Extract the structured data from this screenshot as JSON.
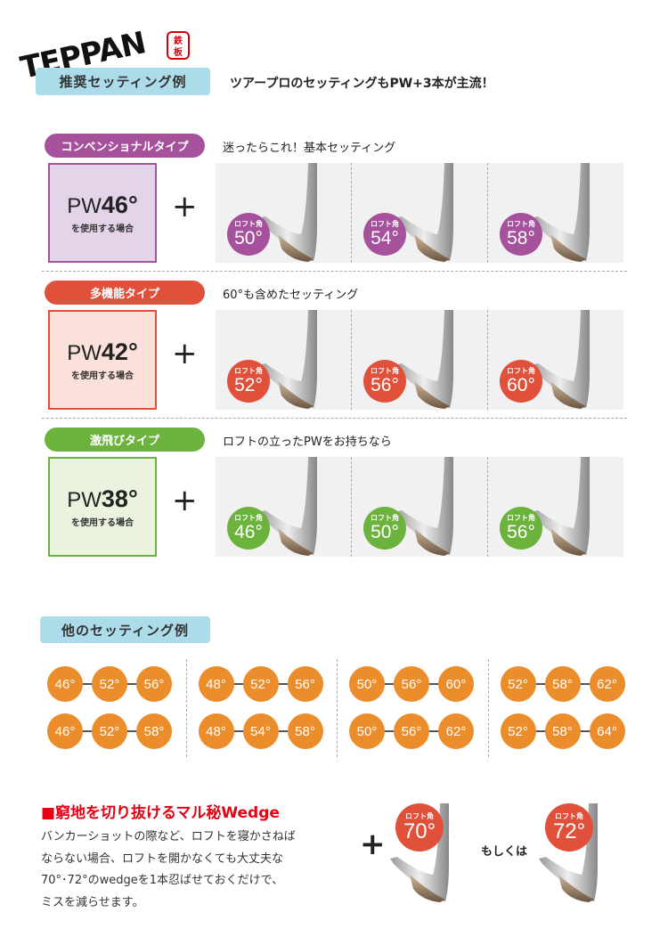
{
  "logo": {
    "text": "TEPPAN",
    "seal": "鉄板"
  },
  "recommended": {
    "header": "推奨セッティング例",
    "subtitle": "ツアープロのセッティングもPW+3本が主流！"
  },
  "loft_label": "ロフト角",
  "pw_suffix": "を使用する場合",
  "plus": "+",
  "sections": [
    {
      "type": "コンベンショナルタイプ",
      "desc": "迷ったらこれ！基本セッティング",
      "pw_prefix": "PW",
      "pw_loft": "46°",
      "color": "#a5519b",
      "bg": "#e4d4ea",
      "lofts": [
        "50°",
        "54°",
        "58°"
      ]
    },
    {
      "type": "多機能タイプ",
      "desc": "60°も含めたセッティング",
      "pw_prefix": "PW",
      "pw_loft": "42°",
      "color": "#e0503a",
      "bg": "#fbe1da",
      "lofts": [
        "52°",
        "56°",
        "60°"
      ]
    },
    {
      "type": "激飛びタイプ",
      "desc": "ロフトの立ったPWをお持ちなら",
      "pw_prefix": "PW",
      "pw_loft": "38°",
      "color": "#6cb33e",
      "bg": "#e9f3de",
      "lofts": [
        "46°",
        "50°",
        "56°"
      ]
    }
  ],
  "other": {
    "header": "他のセッティング例",
    "color": "#ec8d2c",
    "groups": [
      [
        [
          "46°",
          "52°",
          "56°"
        ],
        [
          "46°",
          "52°",
          "58°"
        ]
      ],
      [
        [
          "48°",
          "52°",
          "56°"
        ],
        [
          "48°",
          "54°",
          "58°"
        ]
      ],
      [
        [
          "50°",
          "56°",
          "60°"
        ],
        [
          "50°",
          "56°",
          "62°"
        ]
      ],
      [
        [
          "52°",
          "58°",
          "62°"
        ],
        [
          "52°",
          "58°",
          "64°"
        ]
      ]
    ]
  },
  "secret": {
    "title": "■窮地を切り抜けるマル秘Wedge",
    "lines": [
      "バンカーショットの際など、ロフトを寝かさねば",
      "ならない場合、ロフトを開かなくても大丈夫な",
      "70°･72°のwedgeを1本忍ばせておくだけで、",
      "ミスを減らせます。"
    ],
    "lofts": [
      "70°",
      "72°"
    ],
    "or": "もしくは",
    "color": "#e0503a"
  }
}
